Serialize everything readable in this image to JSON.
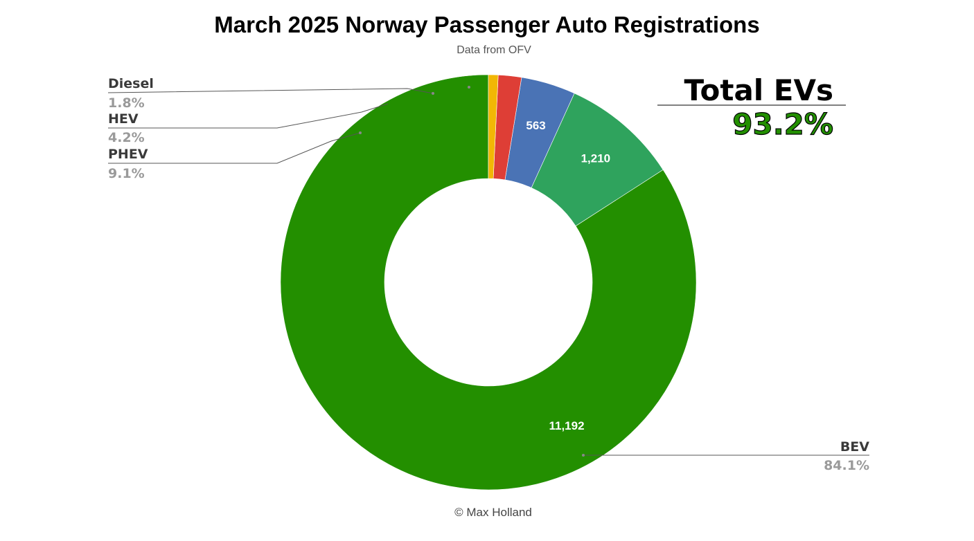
{
  "chart_data": {
    "type": "pie",
    "donut": true,
    "title": "March 2025 Norway Passenger Auto Registrations",
    "subtitle": "Data from OFV",
    "footer": "© Max Holland",
    "start_angle_deg": 0,
    "direction": "clockwise",
    "slices": [
      {
        "key": "bev",
        "name": "BEV",
        "value": 11192,
        "value_label": "11,192",
        "percent_label": "84.1%",
        "color": "#238F00",
        "show_name": true
      },
      {
        "key": "phev",
        "name": "PHEV",
        "value": 1210,
        "value_label": "1,210",
        "percent_label": "9.1%",
        "color": "#2FA35D",
        "show_name": true
      },
      {
        "key": "hev",
        "name": "HEV",
        "value": 563,
        "value_label": "563",
        "percent_label": "4.2%",
        "color": "#4A73B5",
        "show_name": true
      },
      {
        "key": "diesel",
        "name": "Diesel",
        "value": 240,
        "value_label": "",
        "percent_label": "1.8%",
        "color": "#DE3E36",
        "show_name": true
      },
      {
        "key": "petrol",
        "name": "",
        "value": 100,
        "value_label": "",
        "percent_label": "",
        "color": "#F2B705",
        "show_name": false
      }
    ],
    "callout": {
      "title": "Total EVs",
      "value": "93.2%",
      "value_color": "#238F00"
    }
  }
}
